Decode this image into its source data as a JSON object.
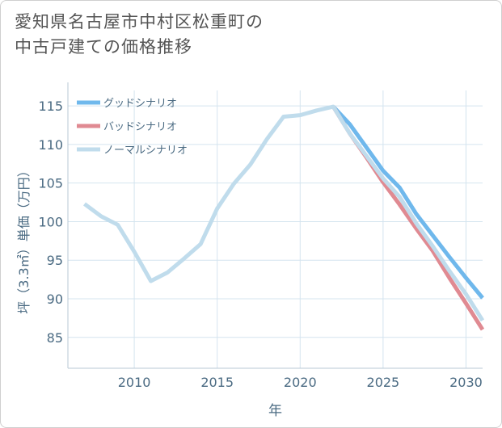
{
  "title_lines": [
    "愛知県名古屋市中村区松重町の",
    "中古戸建ての価格推移"
  ],
  "chart_data": {
    "type": "line",
    "title": "愛知県名古屋市中村区松重町の中古戸建ての価格推移",
    "xlabel": "年",
    "ylabel": "坪（3.3㎡）単価（万円）",
    "xlim": [
      2006,
      2031
    ],
    "ylim": [
      81,
      117
    ],
    "xticks": [
      2010,
      2015,
      2020,
      2025,
      2030
    ],
    "yticks": [
      85,
      90,
      95,
      100,
      105,
      110,
      115
    ],
    "grid": true,
    "legend_position": "top-left",
    "series": [
      {
        "name": "グッドシナリオ",
        "color": "#6fb8ec",
        "x": [
          2022,
          2023,
          2024,
          2025,
          2026,
          2027,
          2028,
          2029,
          2030,
          2031
        ],
        "y": [
          114.9,
          112.6,
          109.6,
          106.6,
          104.4,
          101.0,
          98.2,
          95.4,
          92.7,
          90.1
        ]
      },
      {
        "name": "バッドシナリオ",
        "color": "#e08a92",
        "x": [
          2022,
          2023,
          2024,
          2025,
          2026,
          2027,
          2028,
          2029,
          2030,
          2031
        ],
        "y": [
          114.9,
          111.4,
          108.3,
          105.1,
          102.2,
          99.1,
          96.2,
          92.7,
          89.4,
          86.0
        ]
      },
      {
        "name": "ノーマルシナリオ",
        "color": "#c0dcec",
        "x": [
          2007,
          2008,
          2009,
          2010,
          2011,
          2012,
          2013,
          2014,
          2015,
          2016,
          2017,
          2018,
          2019,
          2020,
          2021,
          2022,
          2023,
          2024,
          2025,
          2026,
          2027,
          2028,
          2029,
          2030,
          2031
        ],
        "y": [
          102.3,
          100.7,
          99.6,
          96.1,
          92.3,
          93.4,
          95.2,
          97.1,
          101.7,
          104.9,
          107.4,
          110.7,
          113.6,
          113.8,
          114.4,
          114.9,
          111.4,
          108.5,
          105.6,
          103.2,
          99.8,
          96.8,
          93.6,
          90.6,
          87.2
        ]
      }
    ]
  }
}
